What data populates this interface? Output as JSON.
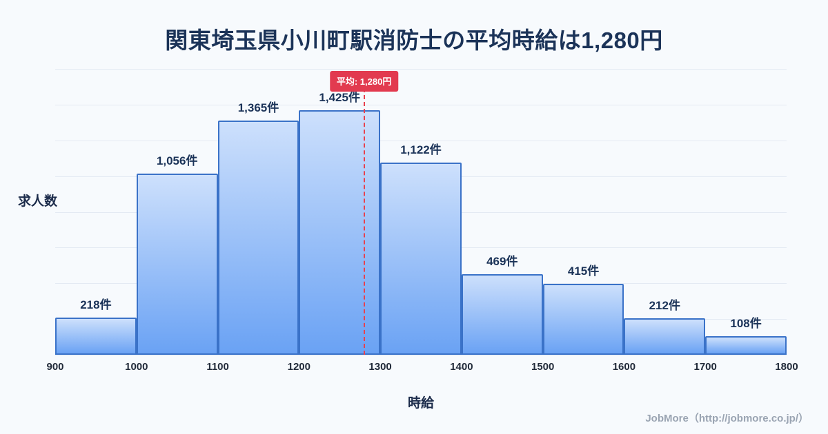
{
  "title": "関東埼玉県小川町駅消防士の平均時給は1,280円",
  "mean_badge": "平均: 1,280円",
  "footer": "JobMore（http://jobmore.co.jp/）",
  "colors": {
    "background": "#f7fafd",
    "title": "#1b3358",
    "bar_fill_top": "#cde0fc",
    "bar_fill_bottom": "#6aa2f4",
    "bar_border": "#3a72c8",
    "mean_line": "#e8404e",
    "badge_bg": "#e23a4f",
    "badge_text": "#ffffff"
  },
  "chart_data": {
    "type": "bar",
    "title": "関東埼玉県小川町駅消防士の平均時給は1,280円",
    "xlabel": "時給",
    "ylabel": "求人数",
    "x_ticks": [
      900,
      1000,
      1100,
      1200,
      1300,
      1400,
      1500,
      1600,
      1700,
      1800
    ],
    "bins": [
      [
        900,
        1000
      ],
      [
        1000,
        1100
      ],
      [
        1100,
        1200
      ],
      [
        1200,
        1300
      ],
      [
        1300,
        1400
      ],
      [
        1400,
        1500
      ],
      [
        1500,
        1600
      ],
      [
        1600,
        1700
      ],
      [
        1700,
        1800
      ]
    ],
    "values": [
      218,
      1056,
      1365,
      1425,
      1122,
      469,
      415,
      212,
      108
    ],
    "value_labels": [
      "218件",
      "1,056件",
      "1,365件",
      "1,425件",
      "1,122件",
      "469件",
      "415件",
      "212件",
      "108件"
    ],
    "mean": 1280,
    "x_range": [
      900,
      1800
    ],
    "grid": "horizontal",
    "legend": false
  }
}
